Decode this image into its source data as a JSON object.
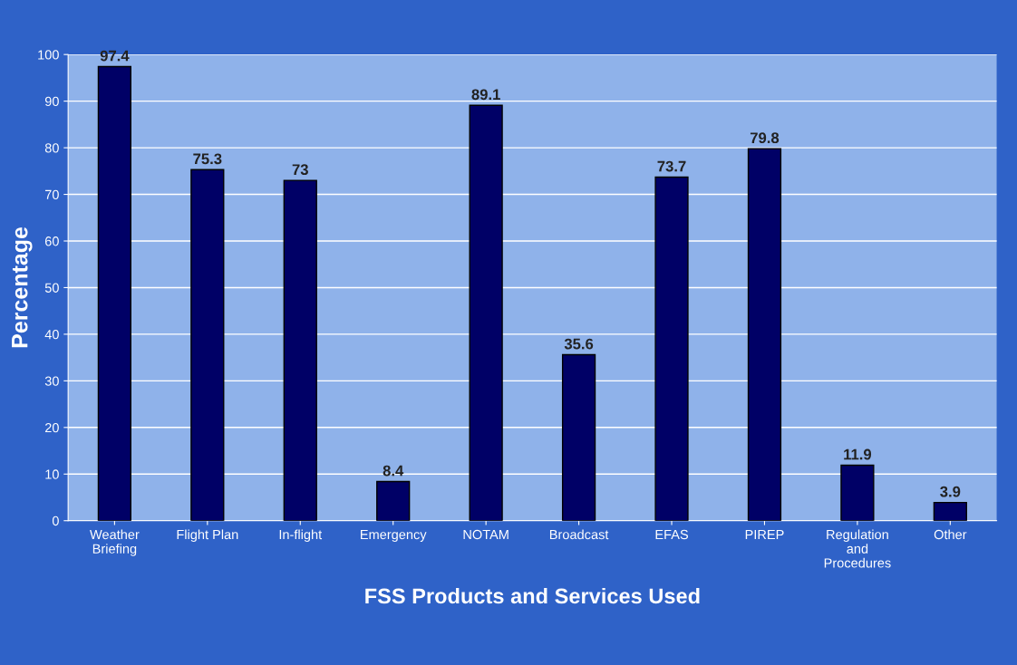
{
  "chart_data": {
    "type": "bar",
    "xlabel": "FSS Products and Services Used",
    "ylabel": "Percentage",
    "categories": [
      "Weather\nBriefing",
      "Flight Plan",
      "In-flight",
      "Emergency",
      "NOTAM",
      "Broadcast",
      "EFAS",
      "PIREP",
      "Regulation\nand\nProcedures",
      "Other"
    ],
    "values": [
      97.4,
      75.3,
      73,
      8.4,
      89.1,
      35.6,
      73.7,
      79.8,
      11.9,
      3.9
    ],
    "color": "#000066",
    "ylim": [
      0,
      100
    ],
    "yticks": [
      0,
      10,
      20,
      30,
      40,
      50,
      60,
      70,
      80,
      90,
      100
    ],
    "grid": "y",
    "data_labels": true,
    "legend": false
  }
}
